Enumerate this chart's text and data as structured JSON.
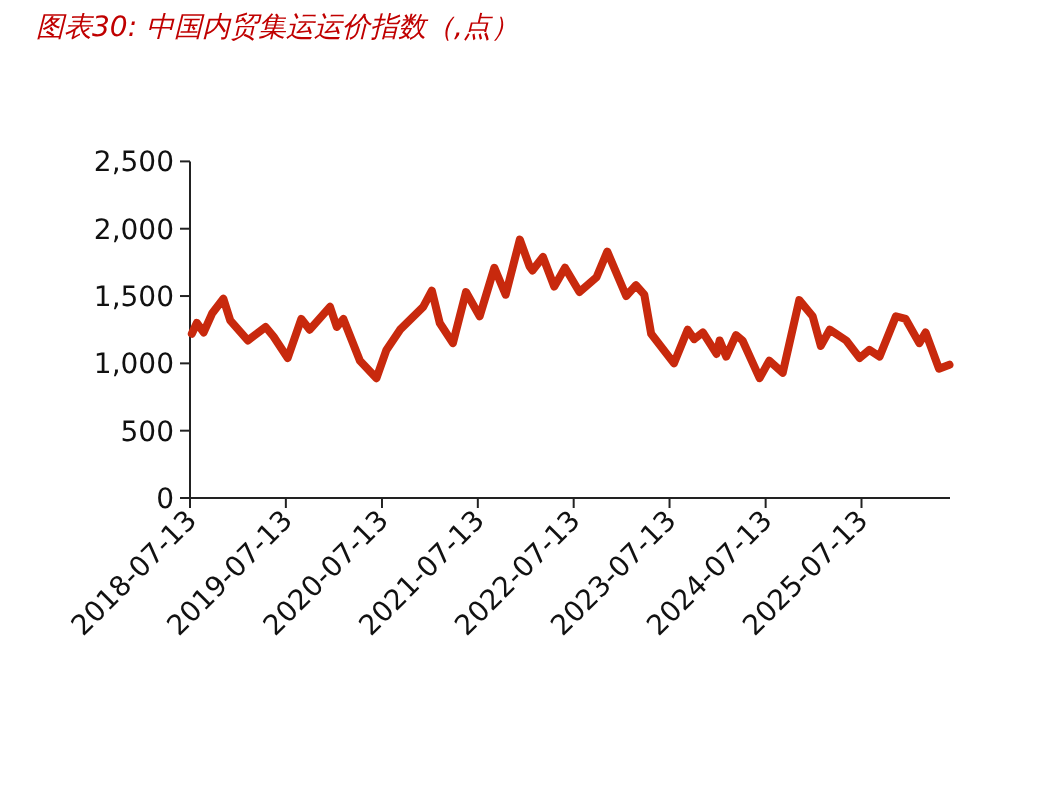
{
  "chart_data": {
    "type": "line",
    "title": "图表30:  中国内贸集运运价指数（,点）",
    "x": [
      "2018-07-20",
      "2018-08-08",
      "2018-09-03",
      "2018-10-05",
      "2018-11-17",
      "2018-12-13",
      "2019-02-18",
      "2019-04-27",
      "2019-05-27",
      "2019-07-20",
      "2019-09-10",
      "2019-10-12",
      "2019-12-28",
      "2020-01-23",
      "2020-02-17",
      "2020-04-20",
      "2020-06-22",
      "2020-07-30",
      "2020-09-20",
      "2020-12-17",
      "2021-01-19",
      "2021-02-18",
      "2021-04-09",
      "2021-05-29",
      "2021-07-20",
      "2021-09-14",
      "2021-10-27",
      "2021-12-20",
      "2022-01-26",
      "2022-02-06",
      "2022-03-18",
      "2022-04-30",
      "2022-06-10",
      "2022-08-04",
      "2022-10-08",
      "2022-11-18",
      "2023-01-29",
      "2023-03-07",
      "2023-04-08",
      "2023-05-04",
      "2023-07-30",
      "2023-09-20",
      "2023-10-15",
      "2023-11-17",
      "2024-01-08",
      "2024-01-20",
      "2024-02-14",
      "2024-03-22",
      "2024-04-16",
      "2024-06-20",
      "2024-07-27",
      "2024-09-16",
      "2024-11-18",
      "2025-01-08",
      "2025-02-08",
      "2025-03-14",
      "2025-05-16",
      "2025-07-06",
      "2025-08-12",
      "2025-09-20",
      "2025-11-21",
      "2025-12-28",
      "2026-02-18",
      "2026-03-14",
      "2026-05-04",
      "2026-06-13"
    ],
    "series": [
      {
        "color": "#c8290d",
        "values": [
          1220,
          1300,
          1230,
          1370,
          1480,
          1320,
          1170,
          1270,
          1200,
          1040,
          1330,
          1250,
          1420,
          1270,
          1330,
          1020,
          890,
          1100,
          1250,
          1420,
          1540,
          1300,
          1150,
          1530,
          1350,
          1710,
          1510,
          1920,
          1720,
          1690,
          1790,
          1570,
          1710,
          1530,
          1640,
          1830,
          1500,
          1580,
          1510,
          1220,
          1000,
          1250,
          1180,
          1230,
          1070,
          1170,
          1050,
          1210,
          1170,
          890,
          1020,
          930,
          1470,
          1350,
          1130,
          1250,
          1170,
          1040,
          1100,
          1050,
          1350,
          1330,
          1150,
          1230,
          960,
          990
        ]
      }
    ],
    "xlim": [
      "2018-07-13",
      "2026-06-15"
    ],
    "xticks": [
      "2018-07-13",
      "2019-07-13",
      "2020-07-13",
      "2021-07-13",
      "2022-07-13",
      "2023-07-13",
      "2024-07-13",
      "2025-07-13"
    ],
    "ylim": [
      0,
      2500
    ],
    "yticks": [
      {
        "value": 0,
        "label": "0"
      },
      {
        "value": 500,
        "label": "500"
      },
      {
        "value": 1000,
        "label": "1,000"
      },
      {
        "value": 1500,
        "label": "1,500"
      },
      {
        "value": 2000,
        "label": "2,000"
      },
      {
        "value": 2500,
        "label": "2,500"
      }
    ],
    "grid": false
  }
}
